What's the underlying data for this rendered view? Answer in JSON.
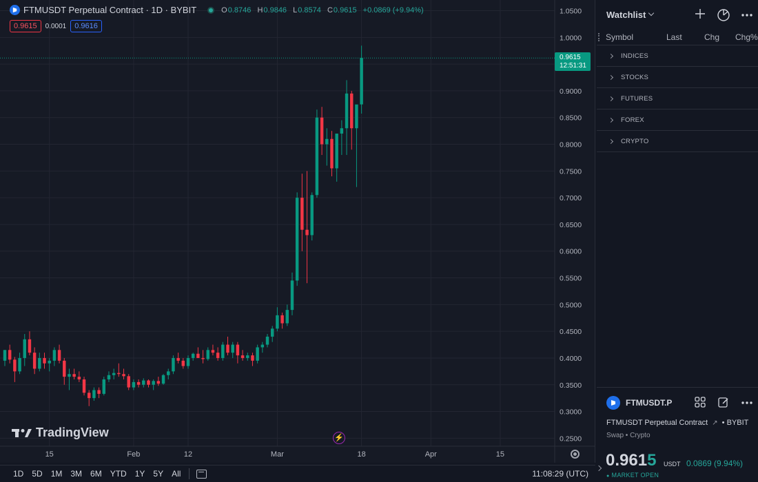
{
  "legend": {
    "title": "FTMUSDT Perpetual Contract · 1D · BYBIT",
    "open_label": "O",
    "open": "0.8746",
    "high_label": "H",
    "high": "0.9846",
    "low_label": "L",
    "low": "0.8574",
    "close_label": "C",
    "close": "0.9615",
    "change": "+0.0869 (+9.94%)"
  },
  "trade": {
    "sell": "0.9615",
    "spread": "0.0001",
    "buy": "0.9616"
  },
  "price_tag": {
    "price": "0.9615",
    "countdown": "12:51:31"
  },
  "brand": "TradingView",
  "bottom_bar": {
    "ranges": [
      "1D",
      "5D",
      "1M",
      "3M",
      "6M",
      "YTD",
      "1Y",
      "5Y",
      "All"
    ],
    "clock": "11:08:29 (UTC)"
  },
  "watchlist": {
    "title": "Watchlist",
    "columns": {
      "symbol": "Symbol",
      "last": "Last",
      "chg": "Chg",
      "chgp": "Chg%"
    },
    "groups": [
      "INDICES",
      "STOCKS",
      "FUTURES",
      "FOREX",
      "CRYPTO"
    ]
  },
  "details": {
    "symbol": "FTMUSDT.P",
    "name": "FTMUSDT Perpetual Contract",
    "exchange": "BYBIT",
    "sub": "Swap • Crypto",
    "price_main": "0.961",
    "price_last": "5",
    "currency": "USDT",
    "change": "0.0869 (9.94%)",
    "market": "MARKET OPEN"
  },
  "colors": {
    "up": "#089981",
    "down": "#f23645",
    "background": "#161a25",
    "grid": "#232632"
  },
  "chart_data": {
    "type": "candlestick",
    "symbol": "FTMUSDT Perpetual Contract · 1D · BYBIT",
    "y_ticks": [
      0.25,
      0.3,
      0.35,
      0.4,
      0.45,
      0.5,
      0.55,
      0.6,
      0.65,
      0.7,
      0.75,
      0.8,
      0.85,
      0.9,
      0.95,
      1.0,
      1.05
    ],
    "y_tick_labels": [
      "0.2500",
      "0.3000",
      "0.3500",
      "0.4000",
      "0.4500",
      "0.5000",
      "0.5500",
      "0.6000",
      "0.6500",
      "0.7000",
      "0.7500",
      "0.8000",
      "0.8500",
      "0.9000",
      "0.9500",
      "1.0000",
      "1.0500"
    ],
    "ylim": [
      0.235,
      1.07
    ],
    "x_ticks": [
      {
        "label": "15",
        "date": "2024-01-15"
      },
      {
        "label": "Feb",
        "date": "2024-02-01"
      },
      {
        "label": "12",
        "date": "2024-02-12"
      },
      {
        "label": "Mar",
        "date": "2024-03-01"
      },
      {
        "label": "18",
        "date": "2024-03-18"
      },
      {
        "label": "Apr",
        "date": "2024-04-01"
      },
      {
        "label": "15",
        "date": "2024-04-15"
      }
    ],
    "xlim": [
      "2024-01-06",
      "2024-04-26"
    ],
    "last_price": 0.9615,
    "candles": [
      {
        "date": "2024-01-06",
        "o": 0.395,
        "h": 0.415,
        "l": 0.385,
        "c": 0.415
      },
      {
        "date": "2024-01-07",
        "o": 0.415,
        "h": 0.425,
        "l": 0.39,
        "c": 0.397
      },
      {
        "date": "2024-01-08",
        "o": 0.397,
        "h": 0.402,
        "l": 0.355,
        "c": 0.375
      },
      {
        "date": "2024-01-09",
        "o": 0.375,
        "h": 0.41,
        "l": 0.37,
        "c": 0.4
      },
      {
        "date": "2024-01-10",
        "o": 0.4,
        "h": 0.445,
        "l": 0.385,
        "c": 0.435
      },
      {
        "date": "2024-01-11",
        "o": 0.435,
        "h": 0.45,
        "l": 0.405,
        "c": 0.41
      },
      {
        "date": "2024-01-12",
        "o": 0.41,
        "h": 0.42,
        "l": 0.37,
        "c": 0.38
      },
      {
        "date": "2024-01-13",
        "o": 0.38,
        "h": 0.41,
        "l": 0.375,
        "c": 0.4
      },
      {
        "date": "2024-01-14",
        "o": 0.4,
        "h": 0.41,
        "l": 0.38,
        "c": 0.39
      },
      {
        "date": "2024-01-15",
        "o": 0.39,
        "h": 0.4,
        "l": 0.375,
        "c": 0.395
      },
      {
        "date": "2024-01-16",
        "o": 0.395,
        "h": 0.42,
        "l": 0.385,
        "c": 0.415
      },
      {
        "date": "2024-01-17",
        "o": 0.415,
        "h": 0.425,
        "l": 0.39,
        "c": 0.395
      },
      {
        "date": "2024-01-18",
        "o": 0.395,
        "h": 0.4,
        "l": 0.35,
        "c": 0.365
      },
      {
        "date": "2024-01-19",
        "o": 0.365,
        "h": 0.38,
        "l": 0.34,
        "c": 0.37
      },
      {
        "date": "2024-01-20",
        "o": 0.37,
        "h": 0.38,
        "l": 0.36,
        "c": 0.365
      },
      {
        "date": "2024-01-21",
        "o": 0.365,
        "h": 0.375,
        "l": 0.355,
        "c": 0.36
      },
      {
        "date": "2024-01-22",
        "o": 0.36,
        "h": 0.365,
        "l": 0.33,
        "c": 0.335
      },
      {
        "date": "2024-01-23",
        "o": 0.335,
        "h": 0.34,
        "l": 0.31,
        "c": 0.325
      },
      {
        "date": "2024-01-24",
        "o": 0.325,
        "h": 0.345,
        "l": 0.32,
        "c": 0.34
      },
      {
        "date": "2024-01-25",
        "o": 0.34,
        "h": 0.345,
        "l": 0.325,
        "c": 0.333
      },
      {
        "date": "2024-01-26",
        "o": 0.333,
        "h": 0.365,
        "l": 0.33,
        "c": 0.36
      },
      {
        "date": "2024-01-27",
        "o": 0.36,
        "h": 0.375,
        "l": 0.355,
        "c": 0.368
      },
      {
        "date": "2024-01-28",
        "o": 0.368,
        "h": 0.38,
        "l": 0.36,
        "c": 0.372
      },
      {
        "date": "2024-01-29",
        "o": 0.372,
        "h": 0.39,
        "l": 0.365,
        "c": 0.37
      },
      {
        "date": "2024-01-30",
        "o": 0.37,
        "h": 0.38,
        "l": 0.36,
        "c": 0.366
      },
      {
        "date": "2024-01-31",
        "o": 0.366,
        "h": 0.37,
        "l": 0.34,
        "c": 0.345
      },
      {
        "date": "2024-02-01",
        "o": 0.345,
        "h": 0.36,
        "l": 0.34,
        "c": 0.355
      },
      {
        "date": "2024-02-02",
        "o": 0.355,
        "h": 0.36,
        "l": 0.345,
        "c": 0.35
      },
      {
        "date": "2024-02-03",
        "o": 0.35,
        "h": 0.362,
        "l": 0.345,
        "c": 0.358
      },
      {
        "date": "2024-02-04",
        "o": 0.358,
        "h": 0.36,
        "l": 0.345,
        "c": 0.35
      },
      {
        "date": "2024-02-05",
        "o": 0.35,
        "h": 0.36,
        "l": 0.34,
        "c": 0.357
      },
      {
        "date": "2024-02-06",
        "o": 0.357,
        "h": 0.365,
        "l": 0.348,
        "c": 0.352
      },
      {
        "date": "2024-02-07",
        "o": 0.352,
        "h": 0.37,
        "l": 0.35,
        "c": 0.368
      },
      {
        "date": "2024-02-08",
        "o": 0.368,
        "h": 0.38,
        "l": 0.36,
        "c": 0.375
      },
      {
        "date": "2024-02-09",
        "o": 0.375,
        "h": 0.405,
        "l": 0.37,
        "c": 0.4
      },
      {
        "date": "2024-02-10",
        "o": 0.4,
        "h": 0.41,
        "l": 0.39,
        "c": 0.395
      },
      {
        "date": "2024-02-11",
        "o": 0.395,
        "h": 0.4,
        "l": 0.38,
        "c": 0.385
      },
      {
        "date": "2024-02-12",
        "o": 0.385,
        "h": 0.405,
        "l": 0.38,
        "c": 0.4
      },
      {
        "date": "2024-02-13",
        "o": 0.4,
        "h": 0.41,
        "l": 0.395,
        "c": 0.408
      },
      {
        "date": "2024-02-14",
        "o": 0.408,
        "h": 0.42,
        "l": 0.4,
        "c": 0.4
      },
      {
        "date": "2024-02-15",
        "o": 0.4,
        "h": 0.415,
        "l": 0.39,
        "c": 0.398
      },
      {
        "date": "2024-02-16",
        "o": 0.398,
        "h": 0.42,
        "l": 0.395,
        "c": 0.415
      },
      {
        "date": "2024-02-17",
        "o": 0.415,
        "h": 0.425,
        "l": 0.405,
        "c": 0.41
      },
      {
        "date": "2024-02-18",
        "o": 0.41,
        "h": 0.42,
        "l": 0.395,
        "c": 0.4
      },
      {
        "date": "2024-02-19",
        "o": 0.4,
        "h": 0.43,
        "l": 0.395,
        "c": 0.425
      },
      {
        "date": "2024-02-20",
        "o": 0.425,
        "h": 0.44,
        "l": 0.405,
        "c": 0.41
      },
      {
        "date": "2024-02-21",
        "o": 0.41,
        "h": 0.43,
        "l": 0.4,
        "c": 0.425
      },
      {
        "date": "2024-02-22",
        "o": 0.425,
        "h": 0.43,
        "l": 0.39,
        "c": 0.405
      },
      {
        "date": "2024-02-23",
        "o": 0.405,
        "h": 0.415,
        "l": 0.395,
        "c": 0.4
      },
      {
        "date": "2024-02-24",
        "o": 0.4,
        "h": 0.41,
        "l": 0.395,
        "c": 0.405
      },
      {
        "date": "2024-02-25",
        "o": 0.405,
        "h": 0.41,
        "l": 0.385,
        "c": 0.395
      },
      {
        "date": "2024-02-26",
        "o": 0.395,
        "h": 0.425,
        "l": 0.39,
        "c": 0.42
      },
      {
        "date": "2024-02-27",
        "o": 0.42,
        "h": 0.43,
        "l": 0.41,
        "c": 0.425
      },
      {
        "date": "2024-02-28",
        "o": 0.425,
        "h": 0.445,
        "l": 0.42,
        "c": 0.44
      },
      {
        "date": "2024-02-29",
        "o": 0.44,
        "h": 0.46,
        "l": 0.43,
        "c": 0.455
      },
      {
        "date": "2024-03-01",
        "o": 0.455,
        "h": 0.495,
        "l": 0.45,
        "c": 0.48
      },
      {
        "date": "2024-03-02",
        "o": 0.48,
        "h": 0.485,
        "l": 0.455,
        "c": 0.465
      },
      {
        "date": "2024-03-03",
        "o": 0.465,
        "h": 0.5,
        "l": 0.46,
        "c": 0.49
      },
      {
        "date": "2024-03-04",
        "o": 0.49,
        "h": 0.56,
        "l": 0.48,
        "c": 0.545
      },
      {
        "date": "2024-03-05",
        "o": 0.545,
        "h": 0.71,
        "l": 0.535,
        "c": 0.7
      },
      {
        "date": "2024-03-06",
        "o": 0.7,
        "h": 0.745,
        "l": 0.6,
        "c": 0.64
      },
      {
        "date": "2024-03-07",
        "o": 0.64,
        "h": 0.75,
        "l": 0.54,
        "c": 0.63
      },
      {
        "date": "2024-03-08",
        "o": 0.63,
        "h": 0.71,
        "l": 0.62,
        "c": 0.705
      },
      {
        "date": "2024-03-09",
        "o": 0.705,
        "h": 0.865,
        "l": 0.7,
        "c": 0.85
      },
      {
        "date": "2024-03-10",
        "o": 0.85,
        "h": 0.87,
        "l": 0.78,
        "c": 0.8
      },
      {
        "date": "2024-03-11",
        "o": 0.8,
        "h": 0.83,
        "l": 0.76,
        "c": 0.81
      },
      {
        "date": "2024-03-12",
        "o": 0.81,
        "h": 0.825,
        "l": 0.74,
        "c": 0.755
      },
      {
        "date": "2024-03-13",
        "o": 0.755,
        "h": 0.82,
        "l": 0.73,
        "c": 0.82
      },
      {
        "date": "2024-03-14",
        "o": 0.82,
        "h": 0.845,
        "l": 0.78,
        "c": 0.83
      },
      {
        "date": "2024-03-15",
        "o": 0.83,
        "h": 0.92,
        "l": 0.78,
        "c": 0.895
      },
      {
        "date": "2024-03-16",
        "o": 0.895,
        "h": 0.9,
        "l": 0.79,
        "c": 0.83
      },
      {
        "date": "2024-03-17",
        "o": 0.83,
        "h": 0.87,
        "l": 0.72,
        "c": 0.8745
      },
      {
        "date": "2024-03-18",
        "o": 0.8746,
        "h": 0.9846,
        "l": 0.8574,
        "c": 0.9615
      }
    ]
  }
}
